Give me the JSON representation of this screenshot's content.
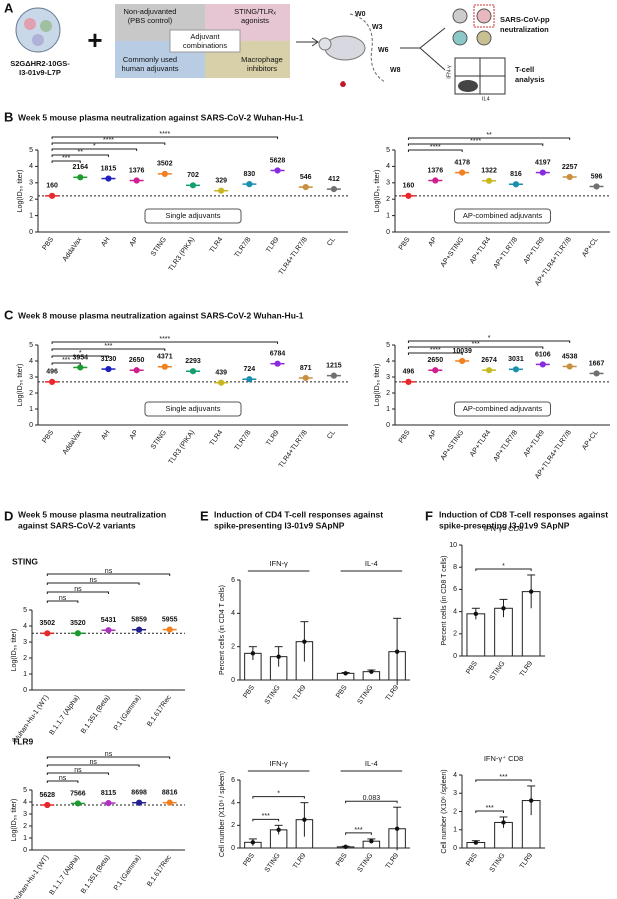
{
  "panels": {
    "a": "A",
    "b": "B",
    "c": "C",
    "d": "D",
    "e": "E",
    "f": "F"
  },
  "sections": {
    "b": "Week 5 mouse plasma neutralization against SARS-CoV-2 Wuhan-Hu-1",
    "c": "Week 8 mouse plasma neutralization against SARS-CoV-2 Wuhan-Hu-1",
    "d": [
      "Week 5 mouse plasma neutralization",
      "against SARS-CoV-2 variants"
    ],
    "e": [
      "Induction of CD4 T-cell responses against",
      "spike-presenting  I3-01v9 SApNP"
    ],
    "f": [
      "Induction of CD8 T-cell responses against",
      "spike-presenting  I3-01v9 SApNP"
    ]
  },
  "schematic": {
    "particle": [
      "S2GΔHR2-10GS-",
      "I3-01v9-L7P"
    ],
    "boxes": [
      [
        "Non-adjuvanted",
        "(PBS control)"
      ],
      [
        "STING/TLRₓ",
        "agonists"
      ],
      [
        "Commonly used",
        "human adjuvants"
      ],
      [
        "Macrophage",
        "inhibitors"
      ]
    ],
    "center": [
      "Adjuvant",
      "combinations"
    ],
    "weeks": [
      "W0",
      "W3",
      "W6",
      "W8"
    ],
    "neutralization": [
      "SARS-CoV-pp",
      "neutralization"
    ],
    "tcell": [
      "T-cell",
      "analysis"
    ],
    "axes": [
      "IFN-γ",
      "IL4"
    ]
  },
  "chart_data": [
    {
      "type": "dot",
      "ylabel": "Log(ID₅₀ titer)",
      "box": "Single adjuvants",
      "ylim": [
        0,
        5
      ],
      "yticks": [
        0,
        1,
        2,
        3,
        4,
        5
      ],
      "categories": [
        "PBS",
        "AddaVax",
        "AH",
        "AP",
        "STING",
        "TLR3 (PIKA)",
        "TLR4",
        "TLR7/8",
        "TLR9",
        "TLR4+TLR7/8",
        "CL"
      ],
      "values": [
        2.2041,
        3.3353,
        3.2589,
        3.1386,
        3.5443,
        2.8463,
        2.5172,
        2.9191,
        3.7503,
        2.7372,
        2.6149
      ],
      "value_labels": [
        "160",
        "2164",
        "1815",
        "1376",
        "3502",
        "702",
        "329",
        "830",
        "5628",
        "546",
        "412"
      ],
      "colors": [
        "#e8282b",
        "#1d9a30",
        "#2020c0",
        "#d02090",
        "#f08020",
        "#10a070",
        "#c8b820",
        "#1a8fb0",
        "#8a2be2",
        "#c89040",
        "#707070"
      ],
      "significance": [
        "***",
        "**",
        "*",
        "****",
        "****"
      ]
    },
    {
      "type": "dot",
      "ylabel": "Log(ID₅₀ titer)",
      "box": "AP-combined adjuvants",
      "ylim": [
        0,
        5
      ],
      "yticks": [
        0,
        1,
        2,
        3,
        4,
        5
      ],
      "categories": [
        "PBS",
        "AP",
        "AP+STING",
        "AP+TLR4",
        "AP+TLR7/8",
        "AP+TLR9",
        "AP+TLR4+TLR7/8",
        "AP+CL"
      ],
      "values": [
        2.2041,
        3.1386,
        3.621,
        3.1212,
        2.9117,
        3.6229,
        3.3535,
        2.7752
      ],
      "value_labels": [
        "160",
        "1376",
        "4178",
        "1322",
        "816",
        "4197",
        "2257",
        "596"
      ],
      "colors": [
        "#e8282b",
        "#d02090",
        "#f08020",
        "#c8b820",
        "#1a8fb0",
        "#8a2be2",
        "#c89040",
        "#707070"
      ],
      "significance": [
        "****",
        "****",
        "**"
      ]
    },
    {
      "type": "dot",
      "ylabel": "Log(ID₅₀ titer)",
      "box": "Single adjuvants",
      "ylim": [
        0,
        5
      ],
      "yticks": [
        0,
        1,
        2,
        3,
        4,
        5
      ],
      "categories": [
        "PBS",
        "AddaVax",
        "AH",
        "AP",
        "STING",
        "TLR3 (PIKA)",
        "TLR4",
        "TLR7/8",
        "TLR9",
        "TLR4+TLR7/8",
        "CL"
      ],
      "values": [
        2.6955,
        3.597,
        3.4955,
        3.4232,
        3.6406,
        3.3604,
        2.6425,
        2.8597,
        3.8315,
        2.94,
        3.0846
      ],
      "value_labels": [
        "496",
        "3954",
        "3130",
        "2650",
        "4371",
        "2293",
        "439",
        "724",
        "6784",
        "871",
        "1215"
      ],
      "colors": [
        "#e8282b",
        "#1d9a30",
        "#2020c0",
        "#d02090",
        "#f08020",
        "#10a070",
        "#c8b820",
        "#1a8fb0",
        "#8a2be2",
        "#c89040",
        "#707070"
      ],
      "significance": [
        "***",
        "*",
        "***",
        "****"
      ]
    },
    {
      "type": "dot",
      "ylabel": "Log(ID₅₀ titer)",
      "box": "AP-combined adjuvants",
      "ylim": [
        0,
        5
      ],
      "yticks": [
        0,
        1,
        2,
        3,
        4,
        5
      ],
      "categories": [
        "PBS",
        "AP",
        "AP+STING",
        "AP+TLR4",
        "AP+TLR7/8",
        "AP+TLR9",
        "AP+TLR4+TLR7/8",
        "AP+CL"
      ],
      "values": [
        2.6955,
        3.4232,
        4.0017,
        3.4272,
        3.4816,
        3.7858,
        3.6569,
        3.2219
      ],
      "value_labels": [
        "496",
        "2650",
        "10039",
        "2674",
        "3031",
        "6106",
        "4538",
        "1667"
      ],
      "colors": [
        "#e8282b",
        "#d02090",
        "#f08020",
        "#c8b820",
        "#1a8fb0",
        "#8a2be2",
        "#c89040",
        "#707070"
      ],
      "significance": [
        "****",
        "***",
        "*"
      ]
    },
    {
      "type": "dot",
      "subtitle": "STING",
      "ylabel": "Log(ID₅₀ titer)",
      "ylim": [
        0,
        5
      ],
      "yticks": [
        0,
        1,
        2,
        3,
        4,
        5
      ],
      "categories": [
        "Wuhan-Hu-1 (WT)",
        "B.1.1.7 (Alpha)",
        "B.1.351 (Beta)",
        "P.1 (Gamma)",
        "B.1.617Rec"
      ],
      "values": [
        3.5443,
        3.5465,
        3.7349,
        3.7678,
        3.7749
      ],
      "value_labels": [
        "3502",
        "3520",
        "5431",
        "5859",
        "5955"
      ],
      "colors": [
        "#e8282b",
        "#1d9a30",
        "#b030c0",
        "#202090",
        "#f08020"
      ],
      "significance": [
        "ns",
        "ns",
        "ns",
        "ns"
      ]
    },
    {
      "type": "dot",
      "subtitle": "TLR9",
      "ylabel": "Log(ID₅₀ titer)",
      "ylim": [
        0,
        5
      ],
      "yticks": [
        0,
        1,
        2,
        3,
        4,
        5
      ],
      "categories": [
        "Wuhan-Hu-1 (WT)",
        "B.1.1.7 (Alpha)",
        "B.1.351 (Beta)",
        "P.1 (Gamma)",
        "B.1.617Rec"
      ],
      "values": [
        3.7503,
        3.8789,
        3.9093,
        3.9394,
        3.9453
      ],
      "value_labels": [
        "5628",
        "7566",
        "8115",
        "8698",
        "8816"
      ],
      "colors": [
        "#e8282b",
        "#1d9a30",
        "#b030c0",
        "#202090",
        "#f08020"
      ],
      "significance": [
        "ns",
        "ns",
        "ns",
        "ns"
      ]
    },
    {
      "type": "bar",
      "ylabel": "Percent cells (in CD4 T cells)",
      "ylim": [
        0,
        6
      ],
      "yticks": [
        0,
        2,
        4,
        6
      ],
      "groups": [
        {
          "name": "IFN-γ",
          "categories": [
            "PBS",
            "STING",
            "TLR9"
          ],
          "values": [
            1.6,
            1.4,
            2.3
          ],
          "errors": [
            0.4,
            0.6,
            1.2
          ],
          "significance": []
        },
        {
          "name": "IL-4",
          "categories": [
            "PBS",
            "STING",
            "TLR9"
          ],
          "values": [
            0.4,
            0.5,
            1.7
          ],
          "errors": [
            0.05,
            0.1,
            2.0
          ],
          "significance": []
        }
      ]
    },
    {
      "type": "bar",
      "ylabel": "Cell number (X10⁶ / spleen)",
      "ylim": [
        0,
        6
      ],
      "yticks": [
        0,
        2,
        4,
        6
      ],
      "groups": [
        {
          "name": "IFN-γ",
          "categories": [
            "PBS",
            "STING",
            "TLR9"
          ],
          "values": [
            0.5,
            1.6,
            2.5
          ],
          "errors": [
            0.3,
            0.4,
            1.5
          ],
          "significance": [
            "***",
            "*"
          ]
        },
        {
          "name": "IL-4",
          "categories": [
            "PBS",
            "STING",
            "TLR9"
          ],
          "values": [
            0.1,
            0.6,
            1.7
          ],
          "errors": [
            0.05,
            0.2,
            1.9
          ],
          "significance": [
            "***",
            "0.083"
          ]
        }
      ]
    },
    {
      "type": "bar",
      "ylabel": "Percent cells (in CD8 T cells)",
      "ylim": [
        0,
        10
      ],
      "yticks": [
        0,
        2,
        4,
        6,
        8,
        10
      ],
      "groups": [
        {
          "name": "IFN-γ⁺ CD8",
          "categories": [
            "PBS",
            "STING",
            "TLR9"
          ],
          "values": [
            3.8,
            4.3,
            5.8
          ],
          "errors": [
            0.5,
            0.8,
            1.5
          ],
          "significance": [
            "*"
          ]
        }
      ]
    },
    {
      "type": "bar",
      "ylabel": "Cell number (X10⁶ /spleen)",
      "ylim": [
        0,
        4
      ],
      "yticks": [
        0,
        1,
        2,
        3,
        4
      ],
      "groups": [
        {
          "name": "IFN-γ⁺ CD8",
          "categories": [
            "PBS",
            "STING",
            "TLR9"
          ],
          "values": [
            0.3,
            1.4,
            2.6
          ],
          "errors": [
            0.1,
            0.3,
            0.8
          ],
          "significance": [
            "***",
            "***"
          ]
        }
      ]
    }
  ]
}
